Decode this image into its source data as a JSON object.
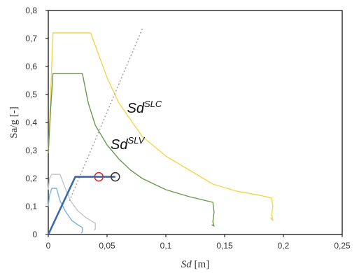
{
  "chart_data": {
    "type": "line",
    "xlabel": {
      "main": "Sd",
      "unit": "[m]"
    },
    "ylabel": "Sa/g [-]",
    "xlim": [
      0,
      0.25
    ],
    "ylim": [
      0,
      0.8
    ],
    "x_ticks": [
      0,
      0.05,
      0.1,
      0.15,
      0.2,
      0.25
    ],
    "x_tick_labels": [
      "0",
      "0,05",
      "0,1",
      "0,15",
      "0,2",
      "0,25"
    ],
    "y_ticks": [
      0,
      0.1,
      0.2,
      0.3,
      0.4,
      0.5,
      0.6,
      0.7,
      0.8
    ],
    "y_tick_labels": [
      "0",
      "0,1",
      "0,2",
      "0,3",
      "0,4",
      "0,5",
      "0,6",
      "0,7",
      "0,8"
    ],
    "grid": false,
    "annotations": [
      {
        "base": "Sd",
        "sup": "SLC",
        "x": 0.067,
        "y": 0.435
      },
      {
        "base": "Sd",
        "sup": "SLV",
        "x": 0.053,
        "y": 0.305
      }
    ],
    "series": [
      {
        "color": "#f2d64b",
        "points": [
          [
            0,
            0.29
          ],
          [
            0.002,
            0.5
          ],
          [
            0.004,
            0.72
          ],
          [
            0.036,
            0.72
          ],
          [
            0.05,
            0.56
          ],
          [
            0.06,
            0.47
          ],
          [
            0.08,
            0.35
          ],
          [
            0.1,
            0.28
          ],
          [
            0.12,
            0.23
          ],
          [
            0.14,
            0.18
          ],
          [
            0.16,
            0.155
          ],
          [
            0.18,
            0.14
          ],
          [
            0.19,
            0.13
          ],
          [
            0.191,
            0.1
          ],
          [
            0.19,
            0.07
          ],
          [
            0.191,
            0.05
          ],
          [
            0.189,
            0.06
          ]
        ]
      },
      {
        "color": "#6a9a4e",
        "points": [
          [
            0,
            0.29
          ],
          [
            0.002,
            0.45
          ],
          [
            0.004,
            0.575
          ],
          [
            0.029,
            0.575
          ],
          [
            0.034,
            0.47
          ],
          [
            0.04,
            0.39
          ],
          [
            0.05,
            0.32
          ],
          [
            0.06,
            0.27
          ],
          [
            0.07,
            0.23
          ],
          [
            0.08,
            0.2
          ],
          [
            0.1,
            0.16
          ],
          [
            0.12,
            0.135
          ],
          [
            0.14,
            0.115
          ],
          [
            0.141,
            0.08
          ],
          [
            0.14,
            0.045
          ],
          [
            0.141,
            0.03
          ],
          [
            0.139,
            0.035
          ]
        ]
      },
      {
        "color": "#c4c4c4",
        "points": [
          [
            0,
            0.16
          ],
          [
            0.001,
            0.2
          ],
          [
            0.003,
            0.215
          ],
          [
            0.01,
            0.215
          ],
          [
            0.014,
            0.17
          ],
          [
            0.019,
            0.12
          ],
          [
            0.025,
            0.085
          ],
          [
            0.032,
            0.06
          ],
          [
            0.04,
            0.04
          ],
          [
            0.04,
            0.02
          ],
          [
            0.039,
            0.015
          ]
        ]
      },
      {
        "color": "#7ab3dd",
        "points": [
          [
            0,
            0.1
          ],
          [
            0.001,
            0.14
          ],
          [
            0.003,
            0.165
          ],
          [
            0.007,
            0.165
          ],
          [
            0.01,
            0.12
          ],
          [
            0.015,
            0.08
          ],
          [
            0.02,
            0.05
          ],
          [
            0.025,
            0.035
          ],
          [
            0.029,
            0.025
          ],
          [
            0.029,
            0.01
          ],
          [
            0.028,
            0.005
          ]
        ]
      },
      {
        "color": "#a6a6a6",
        "dashed": true,
        "points": [
          [
            0.018,
            0.12
          ],
          [
            0.08,
            0.735
          ]
        ]
      },
      {
        "color": "#3a67b5",
        "points": [
          [
            0,
            0
          ],
          [
            0.023,
            0.206
          ],
          [
            0.057,
            0.206
          ]
        ]
      }
    ],
    "markers": [
      {
        "x": 0.043,
        "y": 0.206,
        "color": "#cc2a2a"
      },
      {
        "x": 0.057,
        "y": 0.206,
        "color": "#333333"
      }
    ]
  }
}
